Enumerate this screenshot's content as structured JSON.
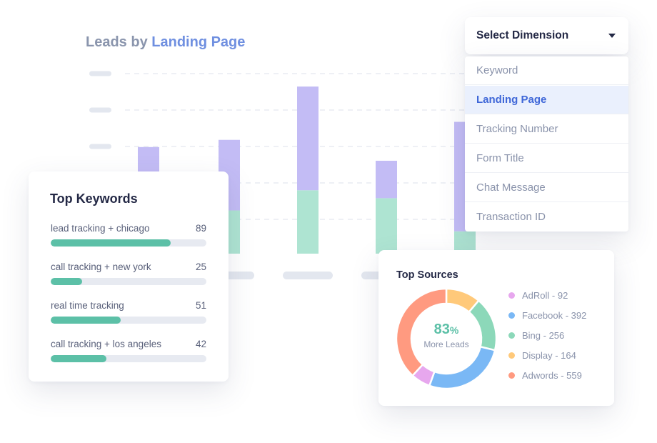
{
  "chart_title": {
    "prefix": "Leads by",
    "highlight": "Landing Page"
  },
  "chart_data": {
    "type": "bar",
    "stacked": true,
    "categories": [
      "",
      "",
      "",
      "",
      ""
    ],
    "series": [
      {
        "values": [
          1.3,
          6.0,
          8.8,
          7.7,
          3.1
        ],
        "color": "#aee4d2"
      },
      {
        "values": [
          13.5,
          9.8,
          14.4,
          5.2,
          15.2
        ],
        "color": "#c3bcf5"
      }
    ],
    "ylim": [
      0,
      25
    ],
    "grid": true
  },
  "keywords": {
    "title": "Top Keywords",
    "items": [
      {
        "label": "lead tracking + chicago",
        "count": "89",
        "fraction": 0.77
      },
      {
        "label": "call tracking + new york",
        "count": "25",
        "fraction": 0.2
      },
      {
        "label": "real time tracking",
        "count": "51",
        "fraction": 0.45
      },
      {
        "label": "call tracking + los angeles",
        "count": "42",
        "fraction": 0.36
      }
    ]
  },
  "dimension": {
    "label": "Select Dimension",
    "options": [
      "Keyword",
      "Landing Page",
      "Tracking Number",
      "Form Title",
      "Chat Message",
      "Transaction ID"
    ],
    "selected_index": 1
  },
  "sources": {
    "title": "Top Sources",
    "center_value": "83",
    "center_unit": "%",
    "center_label": "More Leads",
    "items": [
      {
        "label": "AdRoll - 92",
        "value": 92,
        "color": "#e7a7ee"
      },
      {
        "label": "Facebook - 392",
        "value": 392,
        "color": "#7ab8f5"
      },
      {
        "label": "Bing -  256",
        "value": 256,
        "color": "#8cd8b9"
      },
      {
        "label": "Display - 164",
        "value": 164,
        "color": "#ffc97a"
      },
      {
        "label": "Adwords - 559",
        "value": 559,
        "color": "#ff9a80"
      }
    ]
  },
  "colors": {
    "accent": "#6f8fe0",
    "teal": "#5cc0a7",
    "selected_bg": "#eaf0fd",
    "selected_text": "#3f67d8"
  }
}
